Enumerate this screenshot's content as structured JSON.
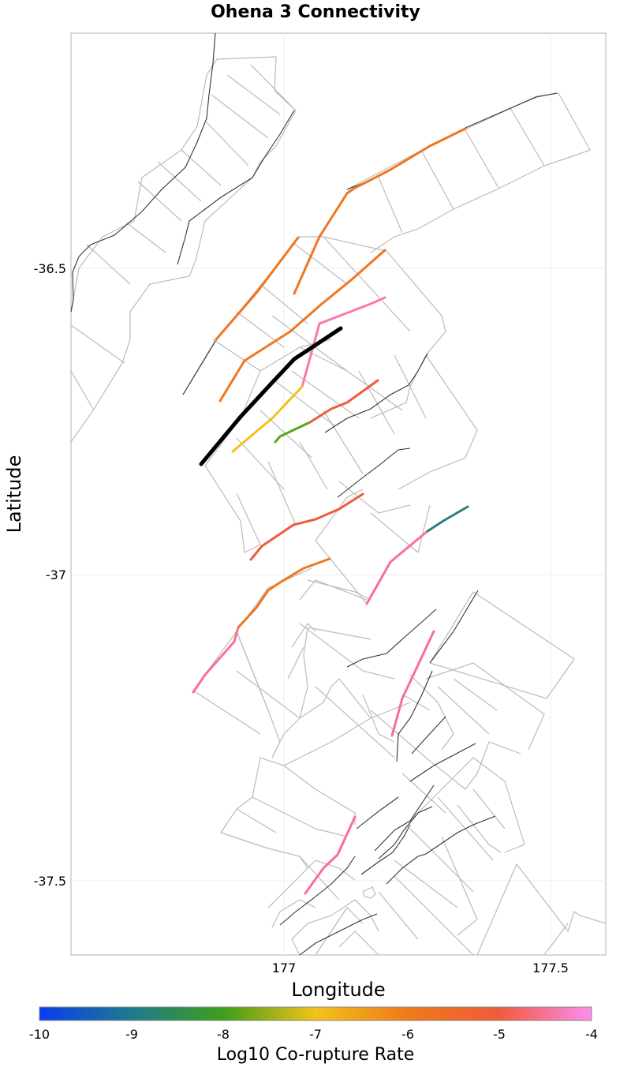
{
  "title": "Ohena 3 Connectivity",
  "x_axis": {
    "label": "Longitude",
    "ticks": [
      "177",
      "177.5"
    ]
  },
  "y_axis": {
    "label": "Latitude",
    "ticks": [
      "-36.5",
      "-37",
      "-37.5"
    ]
  },
  "colorbar": {
    "label": "Log10 Co-rupture Rate",
    "ticks": [
      "-10",
      "-9",
      "-8",
      "-7",
      "-6",
      "-5",
      "-4"
    ],
    "colors": [
      "#0a3cf0",
      "#1f7a8c",
      "#3e9e1a",
      "#f2c21a",
      "#ef7a1a",
      "#f05a3c",
      "#fb8ef0"
    ]
  },
  "colors": {
    "black": "#000000",
    "orange": "#ee7722",
    "dark_orange": "#ea6a1e",
    "red": "#f05a3c",
    "pink": "#fb6e95",
    "yellow": "#f2c21a",
    "green": "#5aa51a",
    "teal": "#2a7d80",
    "trace": "#333333",
    "outline": "#bbbbbb"
  }
}
